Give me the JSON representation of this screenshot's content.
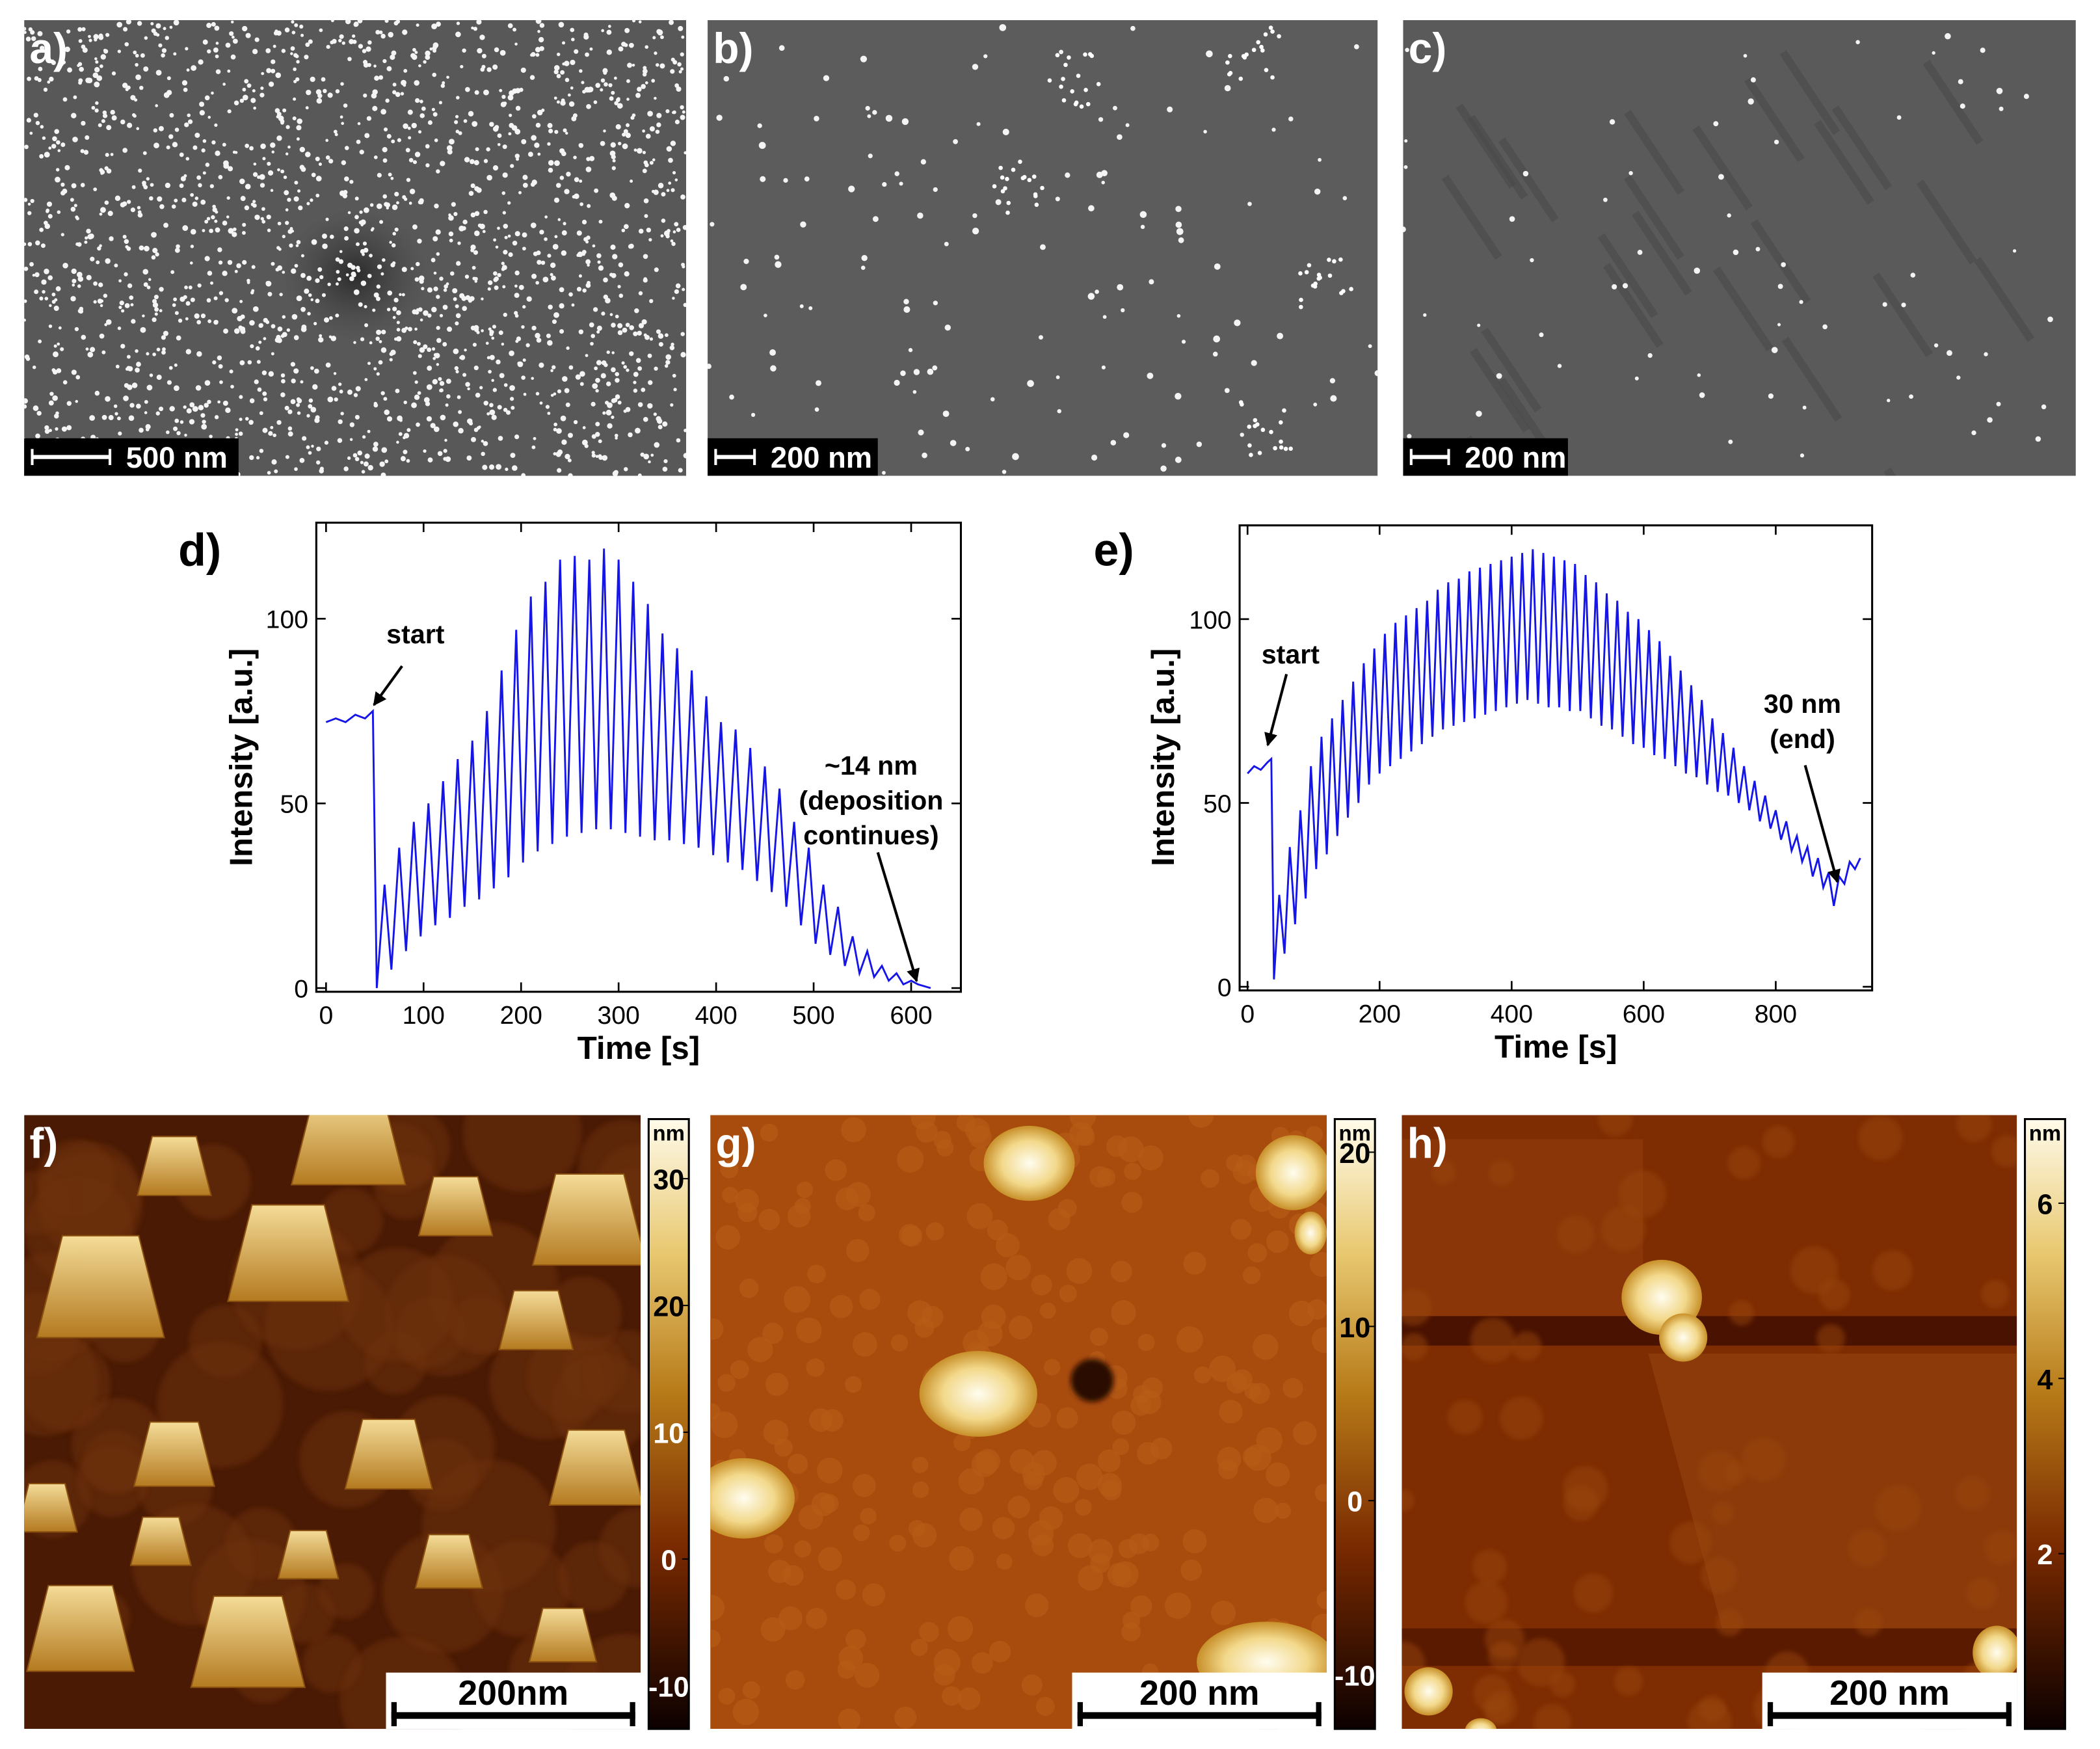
{
  "panels": [
    {
      "label": "a)",
      "scale_bar": "500 nm"
    },
    {
      "label": "b)",
      "scale_bar": "200 nm"
    },
    {
      "label": "c)",
      "scale_bar": "200 nm"
    },
    {
      "label": "f)",
      "scale_bar": "200nm",
      "colorbar": {
        "unit": "nm",
        "lim": [
          -13.4,
          34.7
        ],
        "ticks": [
          30,
          20,
          10,
          0,
          -10
        ]
      }
    },
    {
      "label": "g)",
      "scale_bar": "200 nm",
      "colorbar": {
        "unit": "nm",
        "lim": [
          -13.1,
          21.9
        ],
        "ticks": [
          20,
          10,
          0,
          -10
        ]
      }
    },
    {
      "label": "h)",
      "scale_bar": "200 nm",
      "colorbar": {
        "unit": "nm",
        "lim": [
          0,
          6.96
        ],
        "ticks": [
          6,
          4,
          2
        ]
      }
    }
  ],
  "chart_data": [
    {
      "type": "line",
      "panel_label": "d)",
      "x_label": "Time [s]",
      "y_label": "Intensity [a.u.]",
      "color": "#1515e8",
      "x": [
        0,
        10,
        20,
        30,
        40,
        48,
        52,
        60,
        67,
        75,
        82,
        90,
        97,
        105,
        112,
        120,
        127,
        135,
        142,
        150,
        157,
        165,
        172,
        180,
        187,
        195,
        202,
        210,
        217,
        225,
        232,
        240,
        247,
        255,
        262,
        270,
        277,
        285,
        292,
        300,
        307,
        315,
        322,
        330,
        337,
        345,
        352,
        360,
        367,
        375,
        382,
        390,
        397,
        405,
        412,
        420,
        427,
        435,
        442,
        450,
        457,
        465,
        472,
        480,
        487,
        495,
        502,
        510,
        517,
        525,
        532,
        540,
        547,
        555,
        562,
        570,
        577,
        585,
        592,
        600,
        607,
        620
      ],
      "values": [
        72,
        73,
        72,
        74,
        73,
        75,
        0,
        28,
        5,
        38,
        10,
        45,
        14,
        50,
        17,
        56,
        19,
        62,
        22,
        67,
        24,
        75,
        27,
        86,
        30,
        97,
        34,
        106,
        37,
        110,
        39,
        116,
        41,
        117,
        42,
        116,
        43,
        119,
        43,
        116,
        42,
        110,
        41,
        104,
        40,
        96,
        40,
        92,
        39,
        86,
        38,
        79,
        36,
        72,
        34,
        70,
        32,
        65,
        29,
        60,
        26,
        54,
        22,
        45,
        17,
        38,
        12,
        28,
        9,
        22,
        6,
        14,
        4,
        10,
        3,
        6,
        2,
        4,
        1,
        2,
        1,
        0
      ],
      "xlim": [
        -10,
        651
      ],
      "ylim": [
        -1,
        126
      ],
      "xticks": [
        0,
        100,
        200,
        300,
        400,
        500,
        600
      ],
      "yticks": [
        0,
        50,
        100
      ],
      "annotations": [
        {
          "lines": [
            "start"
          ]
        },
        {
          "lines": [
            "~14 nm",
            "(deposition",
            "continues)"
          ]
        }
      ]
    },
    {
      "type": "line",
      "panel_label": "e)",
      "x_label": "Time [s]",
      "y_label": "Intensity [a.u.]",
      "color": "#1515e8",
      "x": [
        0,
        10,
        20,
        30,
        36,
        40,
        48,
        56,
        64,
        72,
        80,
        88,
        96,
        104,
        112,
        120,
        128,
        136,
        144,
        152,
        160,
        168,
        176,
        184,
        192,
        200,
        208,
        216,
        224,
        232,
        240,
        248,
        256,
        264,
        272,
        280,
        288,
        296,
        304,
        312,
        320,
        328,
        336,
        344,
        352,
        360,
        368,
        376,
        384,
        392,
        400,
        408,
        416,
        424,
        432,
        440,
        448,
        456,
        464,
        472,
        480,
        488,
        496,
        504,
        512,
        520,
        528,
        536,
        544,
        552,
        560,
        568,
        576,
        584,
        592,
        600,
        608,
        616,
        624,
        632,
        640,
        648,
        656,
        664,
        672,
        680,
        688,
        696,
        704,
        712,
        720,
        728,
        736,
        744,
        752,
        760,
        768,
        776,
        784,
        792,
        800,
        808,
        816,
        824,
        832,
        840,
        848,
        856,
        864,
        872,
        880,
        888,
        896,
        904,
        912,
        920,
        928
      ],
      "values": [
        58,
        60,
        59,
        61,
        62,
        2,
        25,
        9,
        38,
        17,
        48,
        24,
        60,
        32,
        68,
        36,
        73,
        41,
        78,
        46,
        83,
        50,
        88,
        55,
        92,
        58,
        96,
        60,
        99,
        62,
        101,
        64,
        103,
        66,
        105,
        68,
        108,
        70,
        110,
        71,
        111,
        72,
        113,
        73,
        114,
        74,
        115,
        75,
        116,
        76,
        117,
        77,
        118,
        78,
        119,
        77,
        118,
        76,
        117,
        76,
        116,
        75,
        115,
        75,
        112,
        73,
        110,
        71,
        107,
        70,
        105,
        68,
        102,
        66,
        100,
        65,
        97,
        63,
        94,
        62,
        90,
        60,
        86,
        58,
        82,
        57,
        78,
        55,
        73,
        53,
        69,
        52,
        65,
        50,
        60,
        48,
        56,
        45,
        52,
        43,
        48,
        40,
        45,
        37,
        41,
        34,
        38,
        30,
        35,
        27,
        31,
        22,
        30,
        28,
        34,
        32,
        35
      ],
      "xlim": [
        -12,
        946
      ],
      "ylim": [
        -1,
        125.5
      ],
      "xticks": [
        0,
        200,
        400,
        600,
        800
      ],
      "yticks": [
        0,
        50,
        100
      ],
      "annotations": [
        {
          "lines": [
            "start"
          ]
        },
        {
          "lines": [
            "30 nm",
            "(end)"
          ]
        }
      ]
    }
  ]
}
